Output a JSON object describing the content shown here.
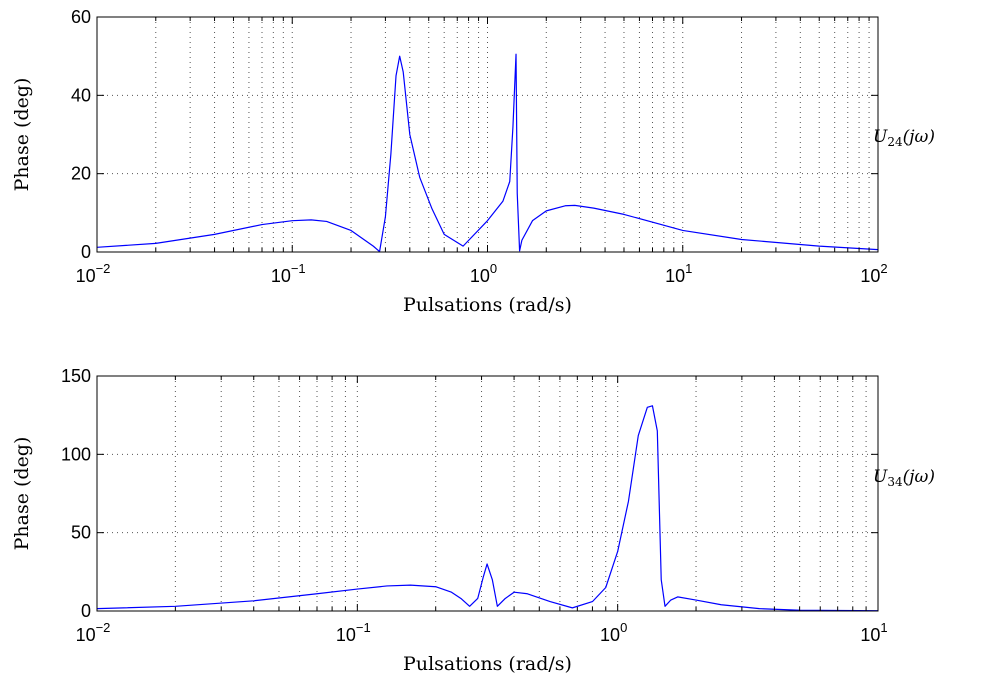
{
  "chart_data": [
    {
      "type": "line",
      "xscale": "log",
      "xlabel": "Pulsations (rad/s)",
      "ylabel": "Phase (deg)",
      "side_label": {
        "main": "U",
        "sub": "24",
        "suffix": "(jω)"
      },
      "xlim": [
        0.01,
        100
      ],
      "ylim": [
        0,
        60
      ],
      "x_ticks": [
        0.01,
        0.1,
        1,
        10,
        100
      ],
      "x_tick_labels": [
        {
          "base": "10",
          "exp": "−2"
        },
        {
          "base": "10",
          "exp": "−1"
        },
        {
          "base": "10",
          "exp": "0"
        },
        {
          "base": "10",
          "exp": "1"
        },
        {
          "base": "10",
          "exp": "2"
        }
      ],
      "y_ticks": [
        0,
        20,
        40,
        60
      ],
      "y_tick_labels": [
        "0",
        "20",
        "40",
        "60"
      ],
      "grid": true,
      "color": "#0000ff",
      "series": [
        {
          "x": [
            0.01,
            0.02,
            0.04,
            0.07,
            0.1,
            0.125,
            0.15,
            0.2,
            0.26,
            0.28,
            0.3,
            0.32,
            0.34,
            0.355,
            0.37,
            0.4,
            0.45,
            0.52,
            0.6,
            0.75,
            1.0,
            1.2,
            1.3,
            1.35,
            1.4,
            1.42,
            1.46,
            1.5,
            1.7,
            2.0,
            2.5,
            2.8,
            3.5,
            5,
            10,
            20,
            50,
            100
          ],
          "y": [
            1.2,
            2.2,
            4.5,
            7.0,
            8.0,
            8.2,
            7.8,
            5.5,
            1.5,
            0.1,
            9,
            25,
            45,
            50,
            46,
            30,
            19,
            11,
            4.5,
            1.5,
            8,
            13,
            18,
            32,
            50.5,
            15,
            0.3,
            3,
            8,
            10.5,
            11.8,
            11.9,
            11.2,
            9.6,
            5.5,
            3.2,
            1.5,
            0.6
          ]
        }
      ]
    },
    {
      "type": "line",
      "xscale": "log",
      "xlabel": "Pulsations (rad/s)",
      "ylabel": "Phase (deg)",
      "side_label": {
        "main": "U",
        "sub": "34",
        "suffix": "(jω)"
      },
      "xlim": [
        0.01,
        10
      ],
      "ylim": [
        0,
        150
      ],
      "x_ticks": [
        0.01,
        0.1,
        1,
        10
      ],
      "x_tick_labels": [
        {
          "base": "10",
          "exp": "−2"
        },
        {
          "base": "10",
          "exp": "−1"
        },
        {
          "base": "10",
          "exp": "0"
        },
        {
          "base": "10",
          "exp": "1"
        }
      ],
      "y_ticks": [
        0,
        50,
        100,
        150
      ],
      "y_tick_labels": [
        "0",
        "50",
        "100",
        "150"
      ],
      "grid": true,
      "color": "#0000ff",
      "series": [
        {
          "x": [
            0.01,
            0.02,
            0.04,
            0.07,
            0.1,
            0.13,
            0.16,
            0.2,
            0.23,
            0.25,
            0.27,
            0.29,
            0.305,
            0.315,
            0.33,
            0.345,
            0.37,
            0.4,
            0.45,
            0.55,
            0.67,
            0.8,
            0.9,
            1.0,
            1.1,
            1.2,
            1.3,
            1.36,
            1.42,
            1.47,
            1.52,
            1.6,
            1.7,
            2,
            2.5,
            3.5,
            5,
            10
          ],
          "y": [
            1.5,
            3,
            6.5,
            11,
            14,
            16,
            16.5,
            15.5,
            12,
            8,
            3,
            8,
            22,
            30,
            20,
            3,
            8,
            12,
            11,
            6,
            2,
            6,
            15,
            38,
            70,
            112,
            130,
            131,
            115,
            20,
            3,
            7,
            9,
            7,
            4,
            1.5,
            0.5,
            0.2
          ]
        }
      ]
    }
  ]
}
